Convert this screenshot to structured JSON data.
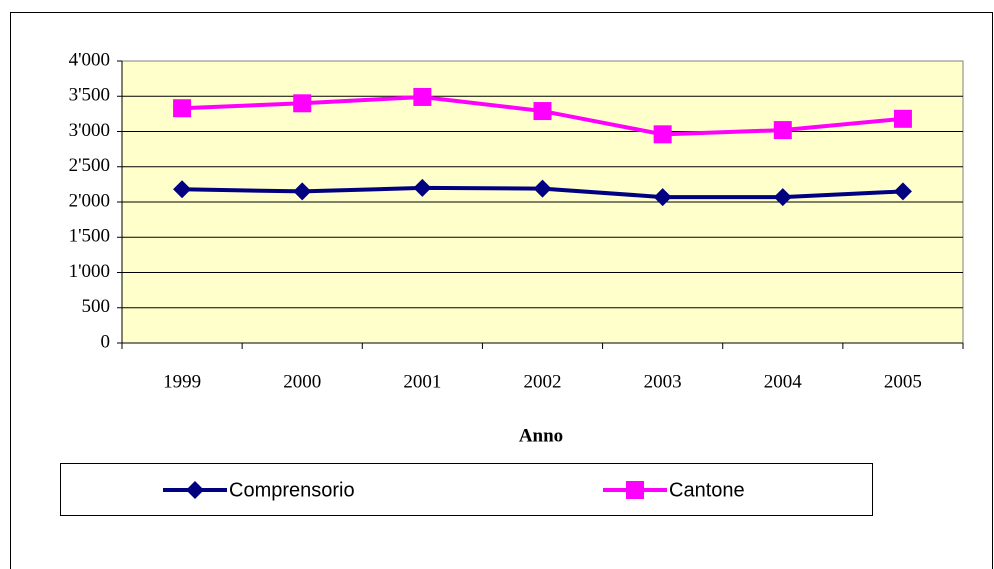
{
  "chart_data": {
    "type": "line",
    "x_label": "Anno",
    "categories": [
      "1999",
      "2000",
      "2001",
      "2002",
      "2003",
      "2004",
      "2005"
    ],
    "series": [
      {
        "name": "Comprensorio",
        "color": "#000080",
        "marker": "diamond",
        "values": [
          2180,
          2150,
          2200,
          2190,
          2070,
          2070,
          2150
        ]
      },
      {
        "name": "Cantone",
        "color": "#ff00ff",
        "marker": "square",
        "values": [
          3330,
          3400,
          3490,
          3290,
          2960,
          3020,
          3180
        ]
      }
    ],
    "ylim": [
      0,
      4000
    ],
    "yticks": [
      0,
      500,
      {
        "value": 1000,
        "label": "1'000"
      },
      {
        "value": 1500,
        "label": "1'500"
      },
      {
        "value": 2000,
        "label": "2'000"
      },
      {
        "value": 2500,
        "label": "2'500"
      },
      {
        "value": 3000,
        "label": "3'000"
      },
      {
        "value": 3500,
        "label": "3'500"
      },
      {
        "value": 4000,
        "label": "4'000"
      }
    ],
    "grid": true,
    "plot_background": "#ffffcc"
  }
}
